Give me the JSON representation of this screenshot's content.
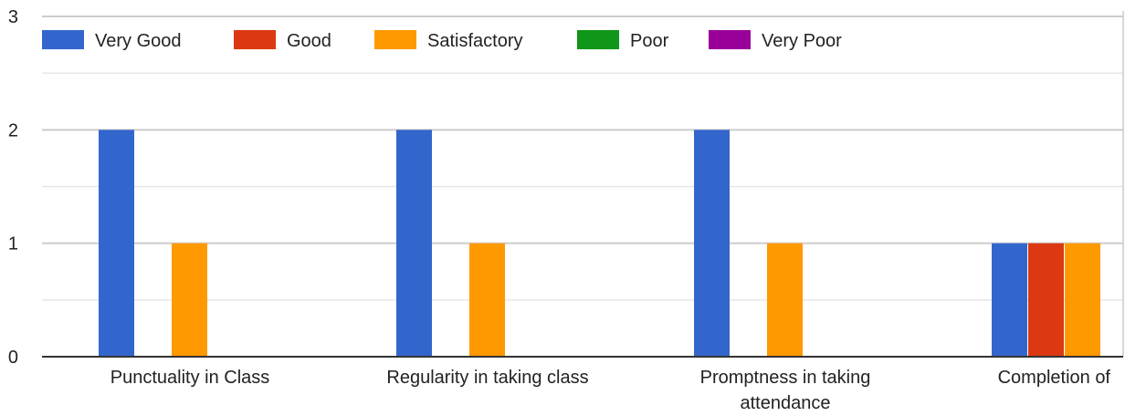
{
  "chart_data": {
    "type": "bar",
    "title": "",
    "xlabel": "",
    "ylabel": "",
    "ylim": [
      0,
      3
    ],
    "yticks": [
      "0",
      "1",
      "2",
      "3"
    ],
    "grid": true,
    "legend_position": "top-left",
    "categories": [
      [
        "Punctuality in Class"
      ],
      [
        "Regularity in taking class"
      ],
      [
        "Promptness in taking",
        "attendance"
      ],
      [
        "Completion of"
      ]
    ],
    "series": [
      {
        "name": "Very Good",
        "color": "#3366cc",
        "values": [
          2,
          2,
          2,
          1
        ]
      },
      {
        "name": "Good",
        "color": "#dc3912",
        "values": [
          0,
          0,
          0,
          1
        ]
      },
      {
        "name": "Satisfactory",
        "color": "#ff9900",
        "values": [
          1,
          1,
          1,
          1
        ]
      },
      {
        "name": "Poor",
        "color": "#109618",
        "values": [
          0,
          0,
          0,
          0
        ]
      },
      {
        "name": "Very Poor",
        "color": "#990099",
        "values": [
          0,
          0,
          0,
          0
        ]
      }
    ]
  }
}
